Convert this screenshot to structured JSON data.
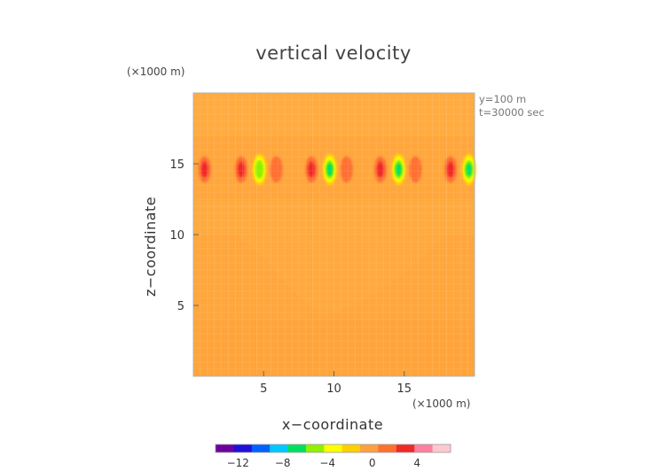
{
  "chart_data": {
    "type": "heatmap",
    "title": "vertical velocity",
    "xlabel": "x−coordinate",
    "ylabel": "z−coordinate",
    "x_unit": "(×1000 m)",
    "y_unit": "(×1000 m)",
    "xlim": [
      0,
      20
    ],
    "ylim": [
      0,
      20
    ],
    "xticks": [
      5,
      10,
      15
    ],
    "yticks": [
      5,
      10,
      15
    ],
    "annotations": [
      "y=100 m",
      "t=30000 sec"
    ],
    "background_value": 0.8,
    "colorbar": {
      "range": [
        -14,
        7
      ],
      "ticks": [
        -12,
        -8,
        -4,
        0,
        4
      ],
      "colors": [
        "#6f00a0",
        "#2010d8",
        "#0060ff",
        "#00c8ff",
        "#00e060",
        "#90f000",
        "#ffff00",
        "#ffd000",
        "#ffa040",
        "#ff7030",
        "#f02828",
        "#ff80a0",
        "#ffc8d0"
      ]
    },
    "features": [
      {
        "x": 0.8,
        "z": 14.6,
        "value": 2.5
      },
      {
        "x": 3.4,
        "z": 14.6,
        "value": 2.5
      },
      {
        "x": 4.7,
        "z": 14.6,
        "value": -5.5
      },
      {
        "x": 5.9,
        "z": 14.6,
        "value": 2.0
      },
      {
        "x": 8.4,
        "z": 14.6,
        "value": 2.5
      },
      {
        "x": 9.7,
        "z": 14.6,
        "value": -6.0
      },
      {
        "x": 10.9,
        "z": 14.6,
        "value": 2.0
      },
      {
        "x": 13.3,
        "z": 14.6,
        "value": 2.5
      },
      {
        "x": 14.6,
        "z": 14.6,
        "value": -6.0
      },
      {
        "x": 15.8,
        "z": 14.6,
        "value": 2.0
      },
      {
        "x": 18.3,
        "z": 14.6,
        "value": 2.5
      },
      {
        "x": 19.6,
        "z": 14.6,
        "value": -6.0
      }
    ]
  }
}
